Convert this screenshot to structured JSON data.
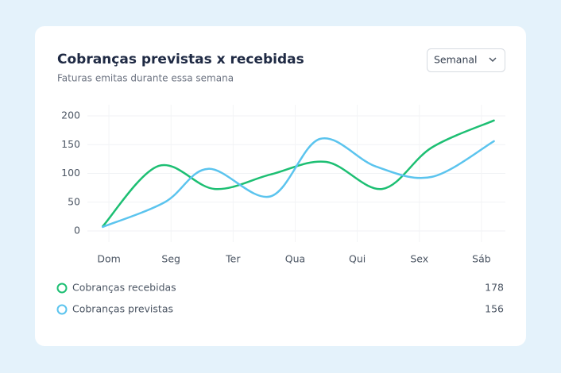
{
  "chart_data": {
    "type": "line",
    "title": "Cobranças previstas x recebidas",
    "subtitle": "Faturas emitas durante essa semana",
    "dropdown": "Semanal",
    "categories": [
      "Dom",
      "Seg",
      "Ter",
      "Qua",
      "Qui",
      "Sex",
      "Sáb"
    ],
    "xlim": [
      -0.5,
      6.5
    ],
    "ylim": [
      0,
      200
    ],
    "yticks": [
      0,
      50,
      100,
      150,
      200
    ],
    "grid": true,
    "series": [
      {
        "name": "Cobranças recebidas",
        "color": "#1dbf73",
        "total": 178,
        "x": [
          -0.1,
          0.8,
          1.7,
          2.6,
          3.5,
          4.4,
          5.2,
          6.2
        ],
        "values": [
          8,
          113,
          73,
          98,
          120,
          73,
          145,
          192
        ]
      },
      {
        "name": "Cobranças previstas",
        "color": "#5bc4ee",
        "total": 156,
        "x": [
          -0.1,
          0.9,
          1.6,
          2.6,
          3.4,
          4.3,
          5.2,
          6.2
        ],
        "values": [
          7,
          50,
          108,
          60,
          160,
          112,
          94,
          156
        ]
      }
    ]
  }
}
